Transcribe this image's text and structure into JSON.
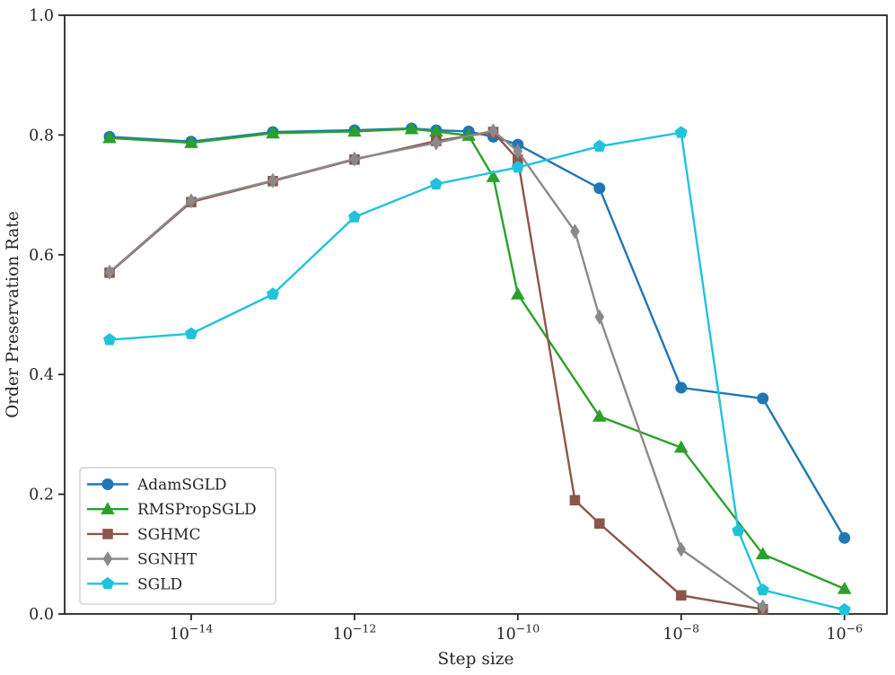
{
  "figure": {
    "background": "#ffffff",
    "axis_color": "#262626",
    "text_color": "#262626",
    "legend_border_color": "#cccccc",
    "legend_fill": "#ffffff"
  },
  "chart_data": {
    "type": "line",
    "title": "",
    "xlabel": "Step size",
    "ylabel": "Order Preservation Rate",
    "x_scale": "log",
    "xlim_log10": [
      -15.55,
      -5.48
    ],
    "ylim": [
      0.0,
      1.0
    ],
    "grid": false,
    "legend_position": "lower left",
    "x_ticks": [
      {
        "value": 1e-14,
        "base": "10",
        "exponent": "−14"
      },
      {
        "value": 1e-12,
        "base": "10",
        "exponent": "−12"
      },
      {
        "value": 1e-10,
        "base": "10",
        "exponent": "−10"
      },
      {
        "value": 1e-08,
        "base": "10",
        "exponent": "−8"
      },
      {
        "value": 1e-06,
        "base": "10",
        "exponent": "−6"
      }
    ],
    "y_ticks": [
      {
        "value": 0.0,
        "label": "0.0"
      },
      {
        "value": 0.2,
        "label": "0.2"
      },
      {
        "value": 0.4,
        "label": "0.4"
      },
      {
        "value": 0.6,
        "label": "0.6"
      },
      {
        "value": 0.8,
        "label": "0.8"
      },
      {
        "value": 1.0,
        "label": "1.0"
      }
    ],
    "series": [
      {
        "name": "AdamSGLD",
        "color": "#1f77b4",
        "marker": "circle",
        "points": [
          [
            1e-15,
            0.797
          ],
          [
            1e-14,
            0.789
          ],
          [
            1e-13,
            0.805
          ],
          [
            1e-12,
            0.808
          ],
          [
            5e-12,
            0.811
          ],
          [
            1e-11,
            0.808
          ],
          [
            2.5e-11,
            0.806
          ],
          [
            5e-11,
            0.797
          ],
          [
            1e-10,
            0.784
          ],
          [
            1e-09,
            0.711
          ],
          [
            1e-08,
            0.378
          ],
          [
            1e-07,
            0.36
          ],
          [
            1e-06,
            0.127
          ]
        ]
      },
      {
        "name": "RMSPropSGLD",
        "color": "#2ca02c",
        "marker": "triangle-up",
        "points": [
          [
            1e-15,
            0.795
          ],
          [
            1e-14,
            0.787
          ],
          [
            1e-13,
            0.803
          ],
          [
            1e-12,
            0.806
          ],
          [
            5e-12,
            0.81
          ],
          [
            1e-11,
            0.806
          ],
          [
            2.5e-11,
            0.799
          ],
          [
            5e-11,
            0.73
          ],
          [
            1e-10,
            0.534
          ],
          [
            1e-09,
            0.33
          ],
          [
            1e-08,
            0.278
          ],
          [
            1e-07,
            0.1
          ],
          [
            1e-06,
            0.042
          ]
        ]
      },
      {
        "name": "SGHMC",
        "color": "#8c564b",
        "marker": "square",
        "points": [
          [
            1e-15,
            0.57
          ],
          [
            1e-14,
            0.688
          ],
          [
            1e-13,
            0.723
          ],
          [
            1e-12,
            0.759
          ],
          [
            1e-11,
            0.79
          ],
          [
            5e-11,
            0.805
          ],
          [
            1e-10,
            0.759
          ],
          [
            5e-10,
            0.19
          ],
          [
            1e-09,
            0.151
          ],
          [
            1e-08,
            0.031
          ],
          [
            1e-07,
            0.008
          ]
        ]
      },
      {
        "name": "SGNHT",
        "color": "#8a8a8a",
        "marker": "diamond",
        "points": [
          [
            1e-15,
            0.571
          ],
          [
            1e-14,
            0.69
          ],
          [
            1e-13,
            0.724
          ],
          [
            1e-12,
            0.76
          ],
          [
            1e-11,
            0.787
          ],
          [
            5e-11,
            0.807
          ],
          [
            1e-10,
            0.773
          ],
          [
            5e-10,
            0.639
          ],
          [
            1e-09,
            0.496
          ],
          [
            1e-08,
            0.108
          ],
          [
            1e-07,
            0.012
          ]
        ]
      },
      {
        "name": "SGLD",
        "color": "#1fc3dc",
        "marker": "pentagon",
        "points": [
          [
            1e-15,
            0.458
          ],
          [
            1e-14,
            0.468
          ],
          [
            1e-13,
            0.534
          ],
          [
            1e-12,
            0.663
          ],
          [
            1e-11,
            0.718
          ],
          [
            1e-10,
            0.746
          ],
          [
            1e-09,
            0.781
          ],
          [
            1e-08,
            0.804
          ],
          [
            5e-08,
            0.139
          ],
          [
            1e-07,
            0.04
          ],
          [
            1e-06,
            0.007
          ]
        ]
      }
    ]
  }
}
